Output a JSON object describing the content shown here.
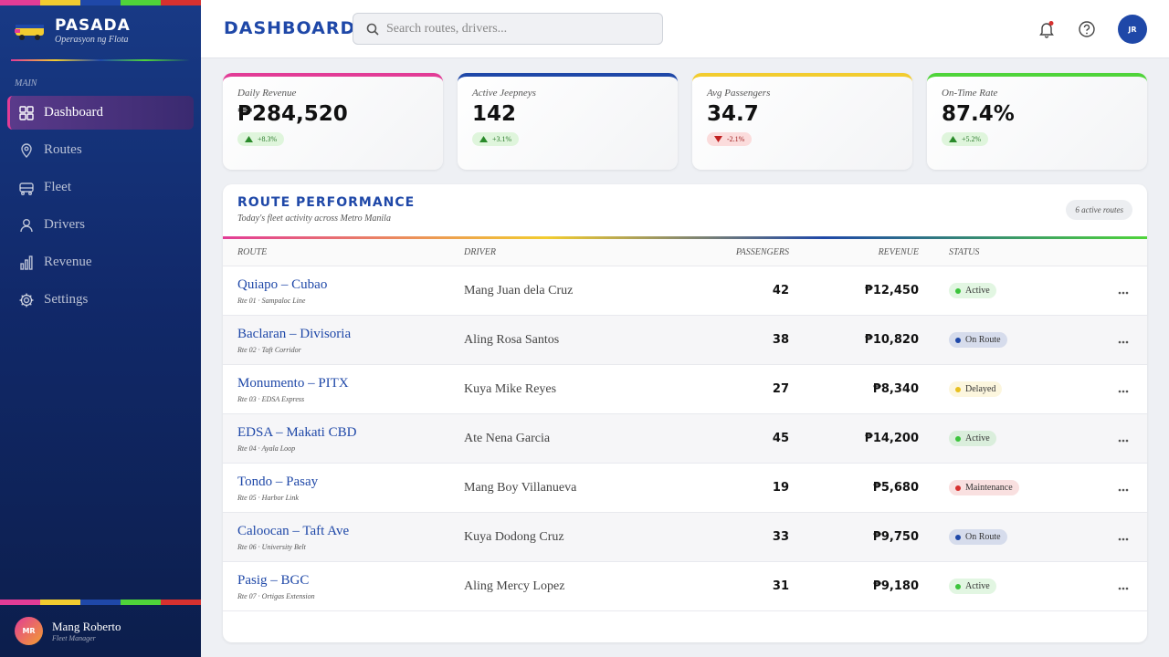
{
  "sidebar": {
    "brand": "PASADA",
    "tagline": "Operasyon ng Flota",
    "section": "MAIN",
    "nav": [
      "Dashboard",
      "Routes",
      "Fleet",
      "Drivers",
      "Revenue",
      "Settings"
    ],
    "active_nav": 0,
    "user": {
      "initials": "MR",
      "name": "Mang Roberto",
      "role": "Fleet Manager"
    }
  },
  "header": {
    "title": "DASHBOARD",
    "search_placeholder": "Search routes, drivers...",
    "avatar": "JR"
  },
  "stats": [
    {
      "label": "Daily Revenue",
      "value": "₱284,520",
      "change": "+8.3%",
      "color": "#e23c96"
    },
    {
      "label": "Active Jeepneys",
      "value": "142",
      "change": "+3.1%",
      "color": "#1f48a8"
    },
    {
      "label": "Avg Passengers",
      "value": "34.7",
      "change": "-2.1%",
      "color": "#f2cc2f"
    },
    {
      "label": "On-Time Rate",
      "value": "87.4%",
      "change": "+5.2%",
      "color": "#4fd43a"
    }
  ],
  "table": {
    "title": "ROUTE PERFORMANCE",
    "subtitle": "Today's fleet activity across Metro Manila",
    "badge": "6 active routes",
    "columns": [
      "ROUTE",
      "DRIVER",
      "PASSENGERS",
      "REVENUE",
      "STATUS"
    ],
    "rows": [
      {
        "route": "Quiapo – Cubao",
        "code": "Rte 01 · Sampaloc Line",
        "driver": "Mang Juan dela Cruz",
        "passengers": "42",
        "revenue": "₱12,450",
        "status": "Active",
        "status_color": "#3cc43c"
      },
      {
        "route": "Baclaran – Divisoria",
        "code": "Rte 02 · Taft Corridor",
        "driver": "Aling Rosa Santos",
        "passengers": "38",
        "revenue": "₱10,820",
        "status": "On Route",
        "status_color": "#1f48a8"
      },
      {
        "route": "Monumento – PITX",
        "code": "Rte 03 · EDSA Express",
        "driver": "Kuya Mike Reyes",
        "passengers": "27",
        "revenue": "₱8,340",
        "status": "Delayed",
        "status_color": "#e8c020"
      },
      {
        "route": "EDSA – Makati CBD",
        "code": "Rte 04 · Ayala Loop",
        "driver": "Ate Nena Garcia",
        "passengers": "45",
        "revenue": "₱14,200",
        "status": "Active",
        "status_color": "#3cc43c"
      },
      {
        "route": "Tondo – Pasay",
        "code": "Rte 05 · Harbor Link",
        "driver": "Mang Boy Villanueva",
        "passengers": "19",
        "revenue": "₱5,680",
        "status": "Maintenance",
        "status_color": "#d6312f"
      },
      {
        "route": "Caloocan – Taft Ave",
        "code": "Rte 06 · University Belt",
        "driver": "Kuya Dodong Cruz",
        "passengers": "33",
        "revenue": "₱9,750",
        "status": "On Route",
        "status_color": "#1f48a8"
      },
      {
        "route": "Pasig – BGC",
        "code": "Rte 07 · Ortigas Extension",
        "driver": "Aling Mercy Lopez",
        "passengers": "31",
        "revenue": "₱9,180",
        "status": "Active",
        "status_color": "#3cc43c"
      }
    ]
  }
}
